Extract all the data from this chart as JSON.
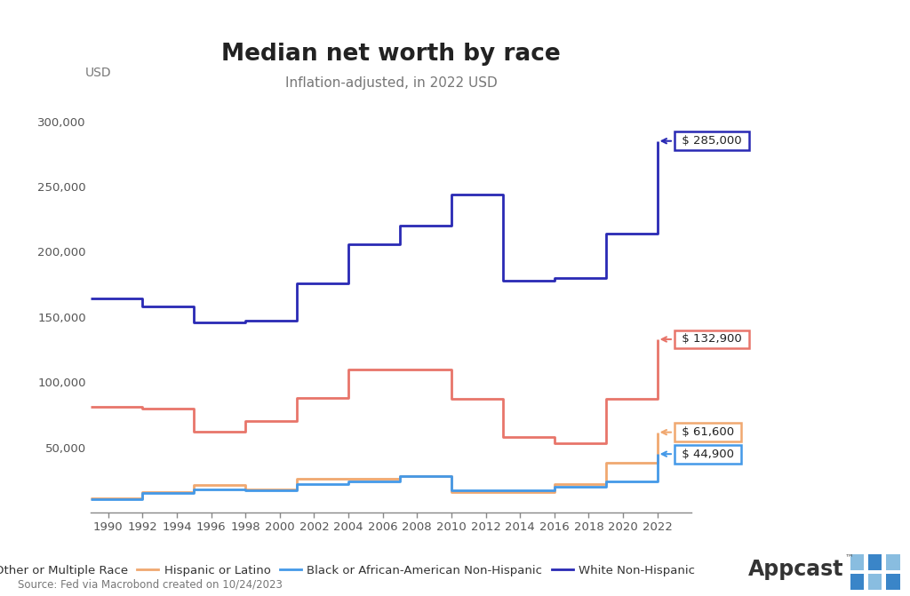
{
  "title": "Median net worth by race",
  "subtitle": "Inflation-adjusted, in 2022 USD",
  "ylabel": "USD",
  "source": "Source: Fed via Macrobond created on 10/24/2023",
  "years": [
    1989,
    1992,
    1995,
    1998,
    2001,
    2004,
    2007,
    2010,
    2013,
    2016,
    2019,
    2022
  ],
  "white": [
    164000,
    158000,
    146000,
    147000,
    176000,
    206000,
    220000,
    244000,
    178000,
    180000,
    214000,
    285000
  ],
  "other": [
    81000,
    80000,
    62000,
    70000,
    88000,
    110000,
    110000,
    87000,
    58000,
    53000,
    87000,
    132900
  ],
  "hispanic": [
    11000,
    16000,
    21000,
    18000,
    26000,
    26000,
    28000,
    16000,
    16000,
    22000,
    38000,
    61600
  ],
  "black": [
    10000,
    15000,
    18000,
    17000,
    22000,
    24000,
    28000,
    17000,
    17000,
    20000,
    24000,
    44900
  ],
  "xtick_years": [
    1990,
    1992,
    1994,
    1996,
    1998,
    2000,
    2002,
    2004,
    2006,
    2008,
    2010,
    2012,
    2014,
    2016,
    2018,
    2020,
    2022
  ],
  "labels": {
    "white": "White Non-Hispanic",
    "other": "Other or Multiple Race",
    "hispanic": "Hispanic or Latino",
    "black": "Black or African-American Non-Hispanic"
  },
  "colors": {
    "white": "#2929b4",
    "other": "#e8756a",
    "hispanic": "#f0a870",
    "black": "#4499e8"
  },
  "end_labels": {
    "white": "$ 285,000",
    "other": "$ 132,900",
    "hispanic": "$ 61,600",
    "black": "$ 44,900"
  },
  "ylim": [
    0,
    320000
  ],
  "yticks": [
    0,
    50000,
    100000,
    150000,
    200000,
    250000,
    300000
  ],
  "background_color": "#ffffff"
}
